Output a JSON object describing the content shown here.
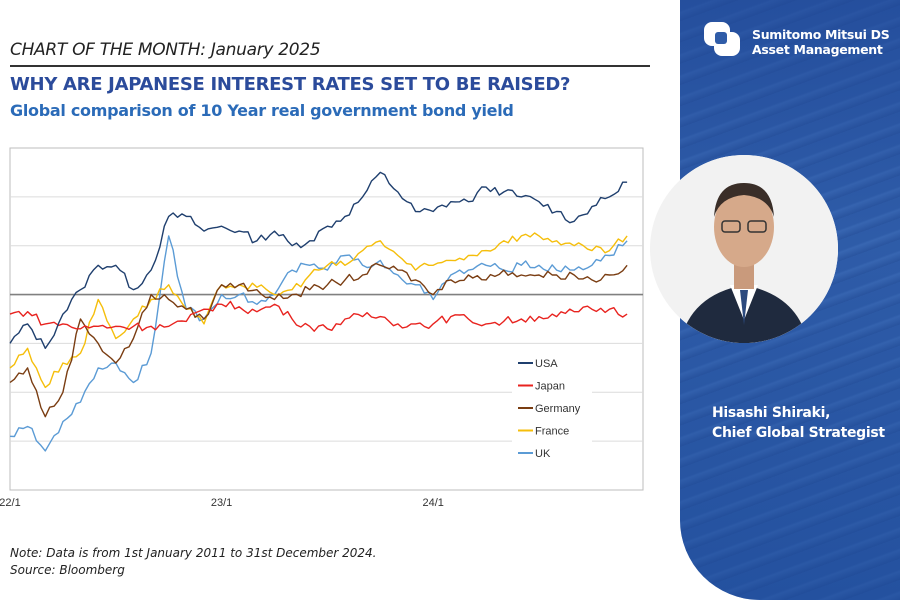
{
  "header": {
    "kicker": "CHART OF THE MONTH: January 2025",
    "title": "WHY ARE JAPANESE INTEREST RATES SET TO BE RAISED?",
    "subtitle": "Global comparison of 10 Year real government bond yield"
  },
  "notes": {
    "note": "Note: Data is from 1st January 2011 to 31st December 2024.",
    "source": "Source: Bloomberg"
  },
  "brand": {
    "line1": "Sumitomo Mitsui DS",
    "line2": "Asset Management",
    "color": "#2f5ca8"
  },
  "person": {
    "name": "Hisashi Shiraki,",
    "role": "Chief Global Strategist"
  },
  "chart_data": {
    "type": "line",
    "title": "",
    "xlabel": "",
    "ylabel": "",
    "x_tick_labels": [
      "22/1",
      "23/1",
      "24/1"
    ],
    "x": [
      "2022-01",
      "2022-02",
      "2022-03",
      "2022-04",
      "2022-05",
      "2022-06",
      "2022-07",
      "2022-08",
      "2022-09",
      "2022-10",
      "2022-11",
      "2022-12",
      "2023-01",
      "2023-02",
      "2023-03",
      "2023-04",
      "2023-05",
      "2023-06",
      "2023-07",
      "2023-08",
      "2023-09",
      "2023-10",
      "2023-11",
      "2023-12",
      "2024-01",
      "2024-02",
      "2024-03",
      "2024-04",
      "2024-05",
      "2024-06",
      "2024-07",
      "2024-08",
      "2024-09",
      "2024-10",
      "2024-11",
      "2024-12"
    ],
    "ylim": [
      -4,
      3
    ],
    "y_ticks_labeled": false,
    "grid": true,
    "zero_line": true,
    "legend_position": "bottom-right",
    "series": [
      {
        "name": "USA",
        "color": "#1f3f6e",
        "values": [
          -1.0,
          -0.6,
          -1.1,
          -0.4,
          0.1,
          0.6,
          0.6,
          0.1,
          0.5,
          1.6,
          1.6,
          1.3,
          1.4,
          1.3,
          1.1,
          1.3,
          1.0,
          1.1,
          1.4,
          1.6,
          2.0,
          2.5,
          2.1,
          1.7,
          1.7,
          1.9,
          1.9,
          2.2,
          2.1,
          2.0,
          1.9,
          1.7,
          1.5,
          1.8,
          2.0,
          2.3
        ]
      },
      {
        "name": "Japan",
        "color": "#e8231f",
        "values": [
          -0.4,
          -0.35,
          -0.6,
          -0.6,
          -0.7,
          -0.65,
          -0.65,
          -0.65,
          -0.65,
          -0.65,
          -0.55,
          -0.3,
          -0.2,
          -0.25,
          -0.35,
          -0.2,
          -0.5,
          -0.65,
          -0.7,
          -0.5,
          -0.45,
          -0.45,
          -0.6,
          -0.6,
          -0.6,
          -0.45,
          -0.5,
          -0.6,
          -0.55,
          -0.5,
          -0.45,
          -0.45,
          -0.35,
          -0.3,
          -0.3,
          -0.4
        ]
      },
      {
        "name": "Germany",
        "color": "#7a3d12",
        "values": [
          -1.8,
          -1.5,
          -2.5,
          -2.0,
          -0.5,
          -1.0,
          -1.4,
          -0.9,
          0.0,
          -0.1,
          -0.3,
          -0.5,
          0.2,
          0.2,
          0.1,
          -0.1,
          0.0,
          0.1,
          0.2,
          0.3,
          0.4,
          0.6,
          0.5,
          0.3,
          0.0,
          0.3,
          0.4,
          0.3,
          0.5,
          0.4,
          0.4,
          0.4,
          0.4,
          0.3,
          0.4,
          0.6
        ]
      },
      {
        "name": "France",
        "color": "#f5be0b",
        "values": [
          -1.5,
          -1.1,
          -1.9,
          -1.4,
          -1.2,
          -0.1,
          -0.9,
          -0.5,
          -0.1,
          0.2,
          -0.3,
          -0.6,
          0.2,
          0.2,
          0.15,
          0.0,
          0.1,
          0.4,
          0.6,
          0.6,
          0.9,
          1.1,
          0.8,
          0.5,
          0.6,
          0.7,
          0.8,
          0.9,
          1.1,
          1.2,
          1.2,
          1.1,
          1.0,
          0.9,
          0.9,
          1.2
        ]
      },
      {
        "name": "UK",
        "color": "#5b9bd5",
        "values": [
          -2.9,
          -2.7,
          -3.2,
          -2.6,
          -2.2,
          -1.5,
          -1.4,
          -1.8,
          -1.2,
          1.2,
          -0.3,
          -0.5,
          0.0,
          0.0,
          -0.2,
          0.0,
          0.5,
          0.6,
          0.5,
          0.8,
          0.6,
          0.7,
          0.4,
          0.2,
          -0.1,
          0.4,
          0.5,
          0.6,
          0.5,
          0.6,
          0.6,
          0.5,
          0.5,
          0.6,
          0.8,
          1.1
        ]
      }
    ]
  }
}
